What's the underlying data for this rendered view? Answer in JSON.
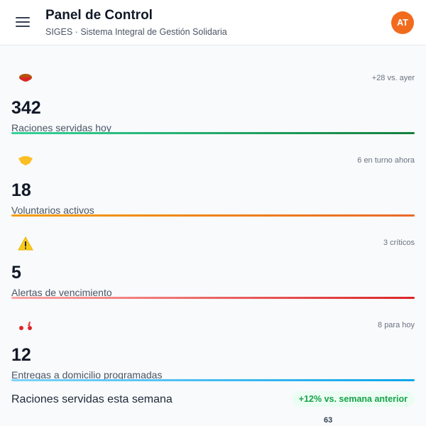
{
  "header": {
    "title": "Panel de Control",
    "subtitle": "SIGES · Sistema Integral de Gestión Solidaria",
    "avatar": "AT"
  },
  "cards": [
    {
      "value": "342",
      "label": "Raciones servidas hoy",
      "note": "+28 vs. ayer"
    },
    {
      "value": "18",
      "label": "Voluntarios activos",
      "note": "6 en turno ahora"
    },
    {
      "value": "5",
      "label": "Alertas de vencimiento",
      "note": "3 críticos"
    },
    {
      "value": "12",
      "label": "Entregas a domicilio programadas",
      "note": "8 para hoy"
    }
  ],
  "weekly": {
    "title": "Raciones servidas esta semana",
    "badge": "+12% vs. semana anterior",
    "peek_value": "63"
  }
}
